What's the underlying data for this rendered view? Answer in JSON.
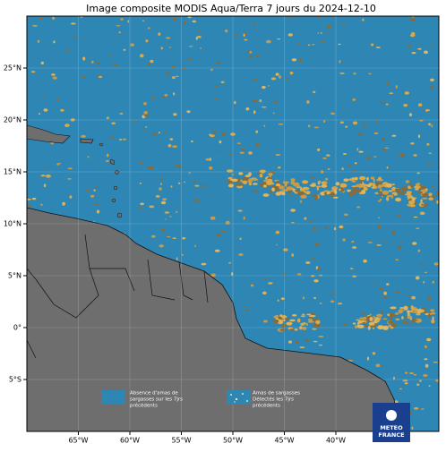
{
  "map": {
    "title": "Image composite MODIS Aqua/Terra 7 jours du 2024-12-10",
    "xlim": [
      -70,
      -30
    ],
    "ylim": [
      -10,
      30
    ],
    "xticks": [
      {
        "value": -65,
        "label": "65°W"
      },
      {
        "value": -60,
        "label": "60°W"
      },
      {
        "value": -55,
        "label": "55°W"
      },
      {
        "value": -50,
        "label": "50°W"
      },
      {
        "value": -45,
        "label": "45°W"
      },
      {
        "value": -40,
        "label": "40°W"
      }
    ],
    "yticks": [
      {
        "value": 25,
        "label": "25°N"
      },
      {
        "value": 20,
        "label": "20°N"
      },
      {
        "value": 15,
        "label": "15°N"
      },
      {
        "value": 10,
        "label": "10°N"
      },
      {
        "value": 5,
        "label": "5°N"
      },
      {
        "value": 0,
        "label": "0°"
      },
      {
        "value": -5,
        "label": "5°S"
      }
    ],
    "legend": [
      {
        "lines": [
          "Absence d'amas de",
          "sargasses sur les 7jrs",
          "précédents"
        ]
      },
      {
        "lines": [
          "Amas de sargasses",
          "Détectés les 7jrs",
          "précédents"
        ]
      }
    ],
    "logo": [
      "METEO",
      "FRANCE"
    ]
  }
}
